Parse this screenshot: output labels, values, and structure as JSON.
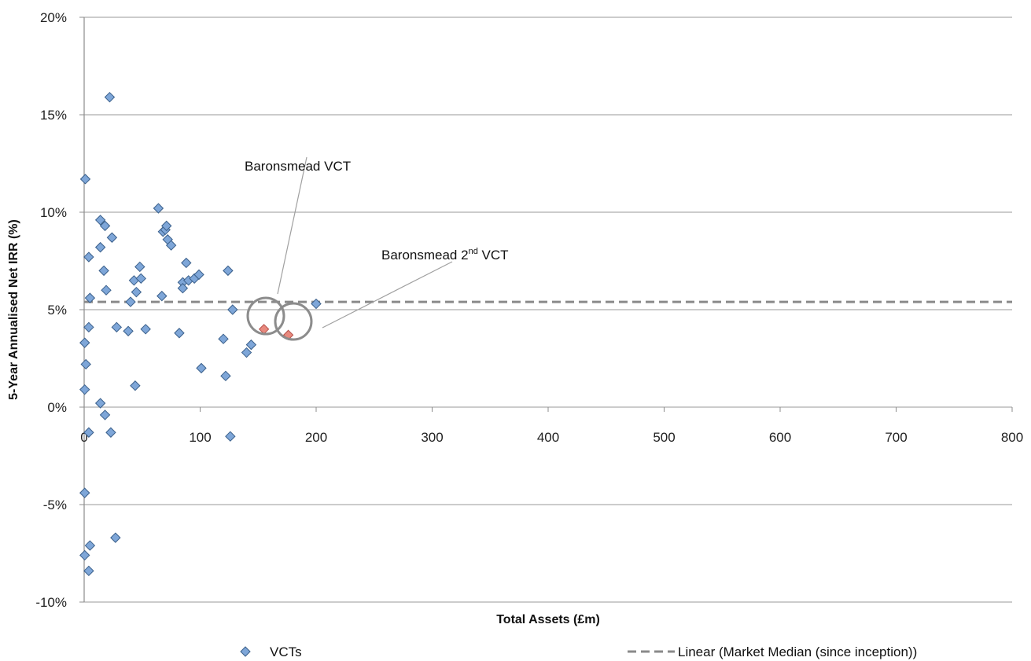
{
  "chart_data": {
    "type": "scatter",
    "xlabel": "Total Assets (£m)",
    "ylabel": "5-Year Annualised Net IRR (%)",
    "xlim": [
      0,
      800
    ],
    "ylim": [
      -10,
      20
    ],
    "x_ticks": [
      "0",
      "100",
      "200",
      "300",
      "400",
      "500",
      "600",
      "700",
      "800"
    ],
    "y_ticks": [
      "-10%",
      "-5%",
      "0%",
      "5%",
      "10%",
      "15%",
      "20%"
    ],
    "grid": "horizontal",
    "legend_position": "bottom",
    "series": [
      {
        "name": "VCTs",
        "marker": "diamond",
        "color": "#7ea6d8",
        "points": [
          [
            1,
            11.7
          ],
          [
            0.5,
            3.3
          ],
          [
            1.5,
            2.2
          ],
          [
            0.5,
            0.9
          ],
          [
            0.5,
            -4.4
          ],
          [
            0.5,
            -7.6
          ],
          [
            4,
            7.7
          ],
          [
            4,
            4.1
          ],
          [
            5,
            5.6
          ],
          [
            4,
            -1.3
          ],
          [
            5,
            -7.1
          ],
          [
            4,
            -8.4
          ],
          [
            14,
            9.6
          ],
          [
            14,
            8.2
          ],
          [
            18,
            9.3
          ],
          [
            22,
            15.9
          ],
          [
            24,
            8.7
          ],
          [
            17,
            7.0
          ],
          [
            19,
            6.0
          ],
          [
            14,
            0.2
          ],
          [
            18,
            -0.4
          ],
          [
            23,
            -1.3
          ],
          [
            28,
            4.1
          ],
          [
            27,
            -6.7
          ],
          [
            38,
            3.9
          ],
          [
            40,
            5.4
          ],
          [
            43,
            6.5
          ],
          [
            45,
            5.9
          ],
          [
            48,
            7.2
          ],
          [
            49,
            6.6
          ],
          [
            44,
            1.1
          ],
          [
            53,
            4.0
          ],
          [
            64,
            10.2
          ],
          [
            67,
            5.7
          ],
          [
            68,
            9.0
          ],
          [
            70,
            9.1
          ],
          [
            71,
            9.3
          ],
          [
            72,
            8.6
          ],
          [
            75,
            8.3
          ],
          [
            82,
            3.8
          ],
          [
            85,
            6.4
          ],
          [
            85,
            6.1
          ],
          [
            88,
            7.4
          ],
          [
            90,
            6.5
          ],
          [
            95,
            6.6
          ],
          [
            99,
            6.8
          ],
          [
            101,
            2.0
          ],
          [
            120,
            3.5
          ],
          [
            122,
            1.6
          ],
          [
            124,
            7.0
          ],
          [
            126,
            -1.5
          ],
          [
            128,
            5.0
          ],
          [
            140,
            2.8
          ],
          [
            144,
            3.2
          ],
          [
            200,
            5.3
          ]
        ]
      },
      {
        "name": "Baronsmead",
        "marker": "diamond",
        "color": "#e8897e",
        "points": [
          [
            155,
            4.0
          ],
          [
            176,
            3.7
          ]
        ]
      }
    ],
    "trendline": {
      "name": "Linear (Market Median (since inception))",
      "y": 5.4,
      "style": "dashed",
      "color": "#888888"
    },
    "annotations": [
      {
        "label": "Baronsmead VCT",
        "target": [
          155,
          4.0
        ]
      },
      {
        "label_prefix": "Baronsmead 2",
        "label_sup": "nd",
        "label_suffix": " VCT",
        "target": [
          176,
          3.7
        ]
      }
    ],
    "legend": [
      {
        "marker": "diamond",
        "label": "VCTs"
      },
      {
        "marker": "dashed-line",
        "label": "Linear (Market Median (since inception))"
      }
    ]
  }
}
